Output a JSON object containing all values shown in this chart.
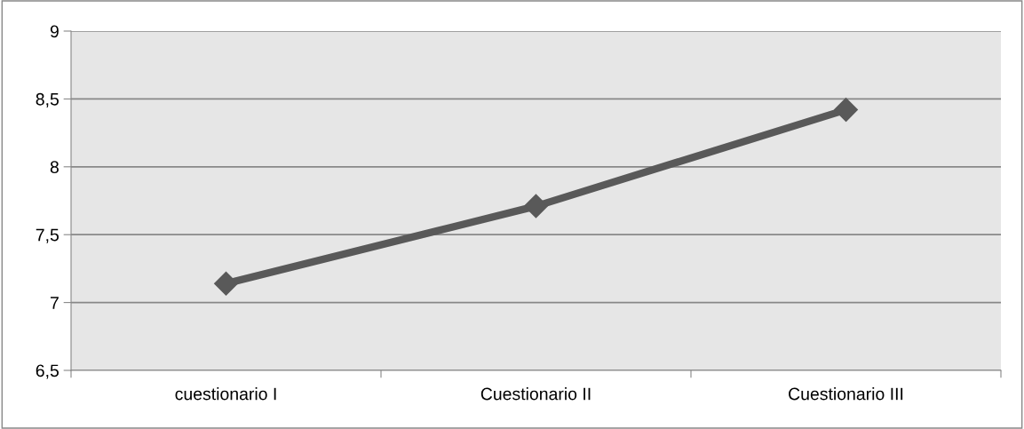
{
  "chart_data": {
    "type": "line",
    "categories": [
      "cuestionario I",
      "Cuestionario II",
      "Cuestionario III"
    ],
    "series": [
      {
        "color": "#595959",
        "values": [
          7.14,
          7.71,
          8.42
        ]
      }
    ],
    "ylim": [
      6.5,
      9
    ],
    "yticks": [
      {
        "value": 6.5,
        "label": "6,5"
      },
      7,
      {
        "value": 7.5,
        "label": "7,5"
      },
      8,
      {
        "value": 8.5,
        "label": "8,5"
      },
      9
    ],
    "grid": "y",
    "marker": "diamond",
    "line_style": "solid"
  }
}
